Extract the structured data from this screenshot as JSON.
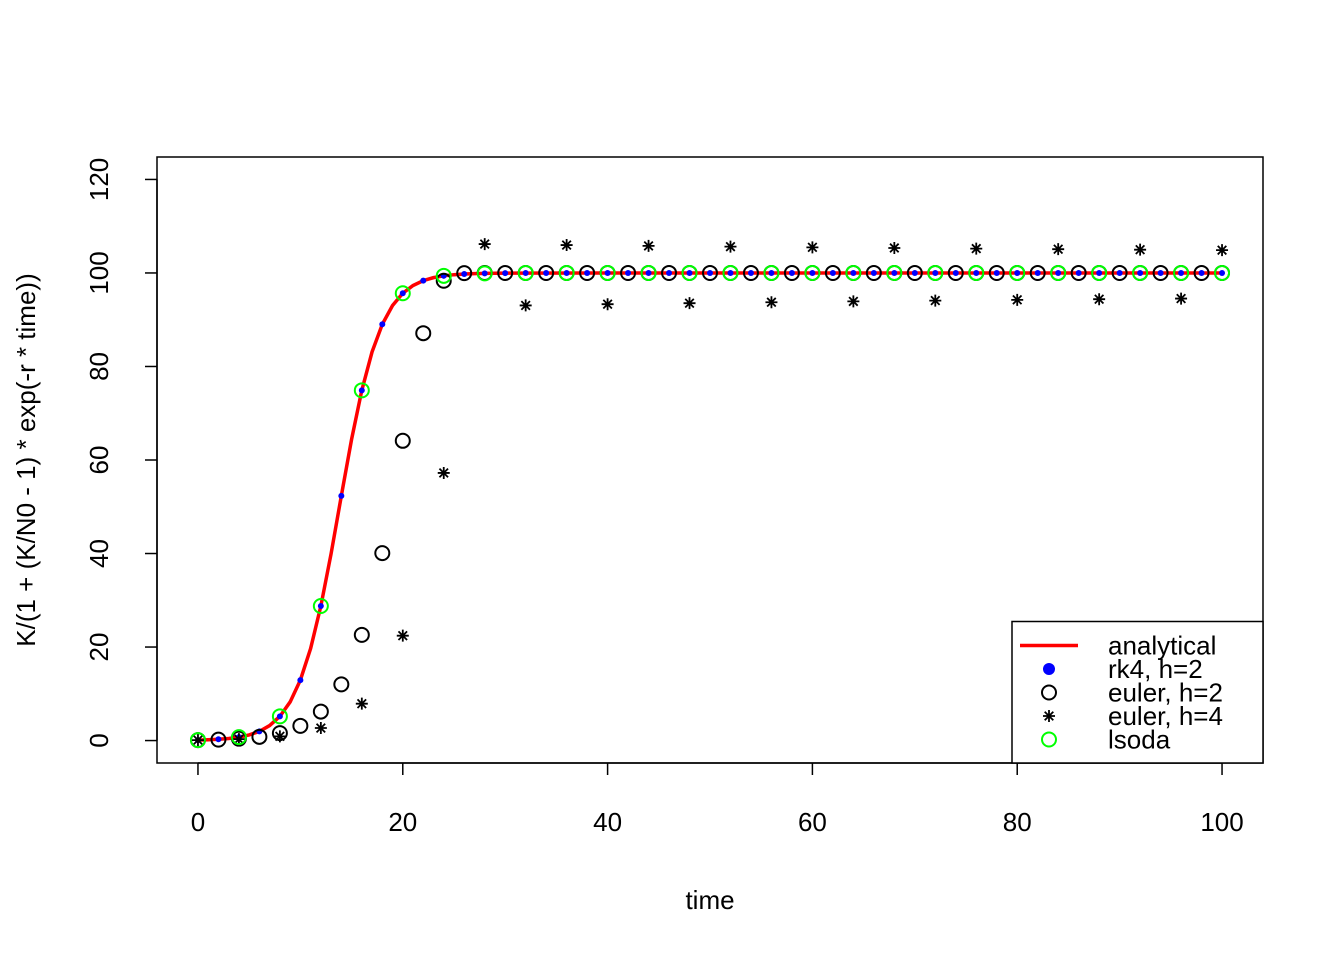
{
  "chart_data": {
    "type": "scatter",
    "xlabel": "time",
    "ylabel": "K/(1 + (K/N0 - 1) * exp(-r * time))",
    "xlim": [
      -4,
      104
    ],
    "ylim": [
      -4.8,
      124.8
    ],
    "xticks": [
      0,
      20,
      40,
      60,
      80,
      100
    ],
    "yticks": [
      0,
      20,
      40,
      60,
      80,
      100,
      120
    ],
    "legend": "bottomright",
    "series": [
      {
        "name": "analytical",
        "color": "#ff0000",
        "marker": "line",
        "x": [
          0,
          1,
          2,
          3,
          4,
          5,
          6,
          7,
          8,
          9,
          10,
          11,
          12,
          13,
          14,
          15,
          16,
          17,
          18,
          19,
          20,
          21,
          22,
          23,
          24,
          25,
          26,
          27,
          28,
          29,
          30,
          40,
          50,
          60,
          70,
          80,
          90,
          100
        ],
        "values": [
          0.1,
          0.165,
          0.271,
          0.447,
          0.734,
          1.205,
          1.971,
          3.209,
          5.18,
          8.26,
          12.93,
          19.67,
          28.77,
          39.97,
          52.33,
          64.41,
          74.9,
          83.11,
          89.02,
          93.04,
          95.66,
          97.32,
          98.36,
          99.0,
          99.39,
          99.63,
          99.77,
          99.86,
          99.92,
          99.95,
          99.97,
          100,
          100,
          100,
          100,
          100,
          100,
          100
        ]
      },
      {
        "name": "rk4, h=2",
        "color": "#0000ff",
        "marker": "dot",
        "x": [
          0,
          2,
          4,
          6,
          8,
          10,
          12,
          14,
          16,
          18,
          20,
          22,
          24,
          26,
          28,
          30,
          32,
          34,
          36,
          38,
          40,
          42,
          44,
          46,
          48,
          50,
          52,
          54,
          56,
          58,
          60,
          62,
          64,
          66,
          68,
          70,
          72,
          74,
          76,
          78,
          80,
          82,
          84,
          86,
          88,
          90,
          92,
          94,
          96,
          98,
          100
        ],
        "values": [
          0.1,
          0.271,
          0.734,
          1.971,
          5.18,
          12.93,
          28.77,
          52.33,
          74.9,
          89.02,
          95.66,
          98.36,
          99.39,
          99.77,
          99.92,
          99.97,
          100,
          100,
          100,
          100,
          100,
          100,
          100,
          100,
          100,
          100,
          100,
          100,
          100,
          100,
          100,
          100,
          100,
          100,
          100,
          100,
          100,
          100,
          100,
          100,
          100,
          100,
          100,
          100,
          100,
          100,
          100,
          100,
          100,
          100,
          100
        ]
      },
      {
        "name": "euler, h=2",
        "color": "#000000",
        "marker": "circle",
        "x": [
          0,
          2,
          4,
          6,
          8,
          10,
          12,
          14,
          16,
          18,
          20,
          22,
          24,
          26,
          28,
          30,
          32,
          34,
          36,
          38,
          40,
          42,
          44,
          46,
          48,
          50,
          52,
          54,
          56,
          58,
          60,
          62,
          64,
          66,
          68,
          70,
          72,
          74,
          76,
          78,
          80,
          82,
          84,
          86,
          88,
          90,
          92,
          94,
          96,
          98,
          100
        ],
        "values": [
          0.1,
          0.2,
          0.4,
          0.8,
          1.59,
          3.15,
          6.2,
          12.02,
          22.6,
          40.09,
          64.11,
          87.12,
          98.34,
          99.97,
          100,
          100,
          100,
          100,
          100,
          100,
          100,
          100,
          100,
          100,
          100,
          100,
          100,
          100,
          100,
          100,
          100,
          100,
          100,
          100,
          100,
          100,
          100,
          100,
          100,
          100,
          100,
          100,
          100,
          100,
          100,
          100,
          100,
          100,
          100,
          100,
          100
        ]
      },
      {
        "name": "euler, h=4",
        "color": "#000000",
        "marker": "asterisk",
        "x": [
          0,
          4,
          8,
          12,
          16,
          20,
          24,
          28,
          32,
          36,
          40,
          44,
          48,
          52,
          56,
          60,
          64,
          68,
          72,
          76,
          80,
          84,
          88,
          92,
          96,
          100
        ],
        "values": [
          0.1,
          0.3,
          0.9,
          2.68,
          7.89,
          22.43,
          57.23,
          106.18,
          93.06,
          105.97,
          93.32,
          105.79,
          93.54,
          105.63,
          93.74,
          105.48,
          93.92,
          105.34,
          94.09,
          105.21,
          94.25,
          105.09,
          94.39,
          104.98,
          94.52,
          104.88
        ]
      },
      {
        "name": "lsoda",
        "color": "#00ff00",
        "marker": "circle",
        "x": [
          0,
          4,
          8,
          12,
          16,
          20,
          24,
          28,
          32,
          36,
          40,
          44,
          48,
          52,
          56,
          60,
          64,
          68,
          72,
          76,
          80,
          84,
          88,
          92,
          96,
          100
        ],
        "values": [
          0.1,
          0.73,
          5.18,
          28.77,
          74.9,
          95.66,
          99.39,
          99.92,
          100,
          100,
          100,
          100,
          100,
          100,
          100,
          100,
          100,
          100,
          100,
          100,
          100,
          100,
          100,
          100,
          100,
          100
        ]
      }
    ]
  }
}
